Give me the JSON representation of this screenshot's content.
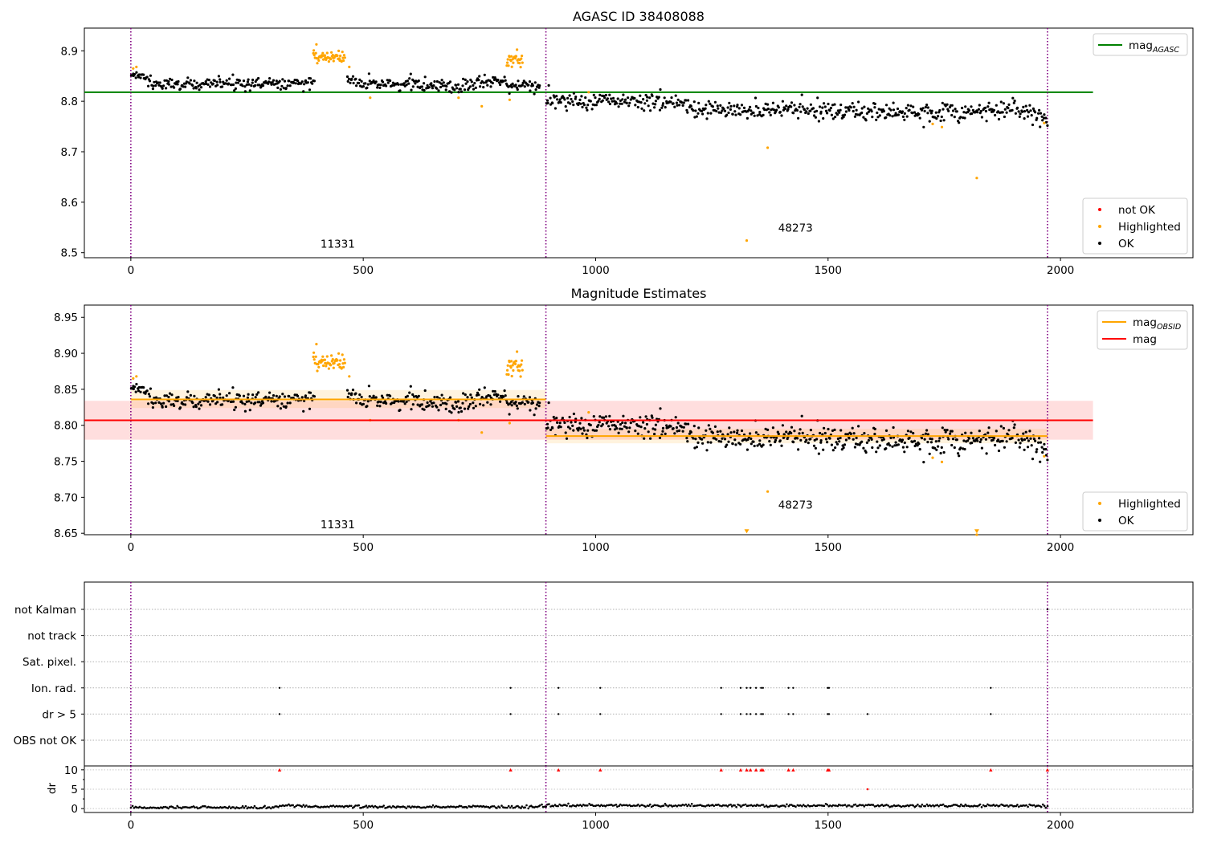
{
  "chart_data": [
    {
      "panel": "top",
      "type": "scatter",
      "title": "AGASC ID 38408088",
      "xlim": [
        -100,
        2285
      ],
      "ylim": [
        8.49,
        8.945
      ],
      "x_ticks": [
        0,
        500,
        1000,
        1500,
        2000
      ],
      "y_ticks": [
        8.5,
        8.6,
        8.7,
        8.8,
        8.9
      ],
      "obsid_boundaries": [
        0,
        893,
        1972
      ],
      "obsid_labels": [
        {
          "text": "11331",
          "x": 445,
          "y": 8.51
        },
        {
          "text": "48273",
          "x": 1430,
          "y": 8.542
        }
      ],
      "reference_lines": [
        {
          "name": "mag_AGASC",
          "value": 8.818,
          "x_range": [
            -100,
            2070
          ],
          "color": "#008000"
        }
      ],
      "series": [
        {
          "name": "OK",
          "color": "#000000",
          "segments": [
            {
              "x_range": [
                0,
                395
              ],
              "levels": [
                [
                  0,
                  8.852
                ],
                [
                  20,
                  8.85
                ],
                [
                  45,
                  8.835
                ],
                [
                  100,
                  8.835
                ],
                [
                  395,
                  8.835
                ]
              ],
              "spread": 0.006
            },
            {
              "x_range": [
                465,
                880
              ],
              "levels": [
                [
                  465,
                  8.846
                ],
                [
                  500,
                  8.832
                ],
                [
                  550,
                  8.836
                ],
                [
                  700,
                  8.83
                ],
                [
                  800,
                  8.842
                ],
                [
                  810,
                  8.832
                ],
                [
                  880,
                  8.83
                ]
              ],
              "spread": 0.006
            },
            {
              "x_range": [
                893,
                1972
              ],
              "levels": [
                [
                  893,
                  8.8
                ],
                [
                  1000,
                  8.8
                ],
                [
                  1150,
                  8.8
                ],
                [
                  1250,
                  8.78
                ],
                [
                  1400,
                  8.784
                ],
                [
                  1600,
                  8.78
                ],
                [
                  1700,
                  8.775
                ],
                [
                  1900,
                  8.785
                ],
                [
                  1972,
                  8.765
                ]
              ],
              "spread": 0.009
            }
          ]
        },
        {
          "name": "Highlighted",
          "color": "#ffa500",
          "clusters": [
            {
              "x_range": [
                392,
                460
              ],
              "center": 8.888,
              "spread": 0.007
            },
            {
              "x_range": [
                808,
                842
              ],
              "center": 8.882,
              "spread": 0.007
            }
          ],
          "points": [
            [
              5,
              8.865
            ],
            [
              12,
              8.868
            ],
            [
              470,
              8.868
            ],
            [
              515,
              8.807
            ],
            [
              705,
              8.807
            ],
            [
              755,
              8.79
            ],
            [
              815,
              8.803
            ],
            [
              985,
              8.818
            ],
            [
              1370,
              8.708
            ],
            [
              1325,
              8.524
            ],
            [
              1725,
              8.755
            ],
            [
              1745,
              8.749
            ],
            [
              1820,
              8.648
            ],
            [
              1965,
              8.757
            ]
          ]
        },
        {
          "name": "not OK",
          "color": "#ff0000",
          "points": []
        }
      ],
      "legend_lines": [
        "mag_AGASC"
      ],
      "legend_markers": [
        "not OK",
        "Highlighted",
        "OK"
      ]
    },
    {
      "panel": "middle",
      "type": "scatter",
      "title": "Magnitude Estimates",
      "xlim": [
        -100,
        2285
      ],
      "ylim": [
        8.648,
        8.967
      ],
      "x_ticks": [
        0,
        500,
        1000,
        1500,
        2000
      ],
      "y_ticks": [
        8.65,
        8.7,
        8.75,
        8.8,
        8.85,
        8.9,
        8.95
      ],
      "obsid_boundaries": [
        0,
        893,
        1972
      ],
      "obsid_labels": [
        {
          "text": "11331",
          "x": 445,
          "y": 8.657
        },
        {
          "text": "48273",
          "x": 1430,
          "y": 8.684
        }
      ],
      "bands": [
        {
          "name": "mag",
          "value": 8.807,
          "low": 8.78,
          "high": 8.834,
          "x_range": [
            -100,
            2070
          ],
          "color": "#ff0000"
        },
        {
          "name": "mag_OBSID 11331",
          "value": 8.836,
          "low": 8.824,
          "high": 8.849,
          "x_range": [
            0,
            893
          ],
          "color": "#ffa500"
        },
        {
          "name": "mag_OBSID 48273",
          "value": 8.785,
          "low": 8.775,
          "high": 8.795,
          "x_range": [
            893,
            1972
          ],
          "color": "#ffa500"
        }
      ],
      "series": [
        {
          "name": "OK",
          "color": "#000000",
          "same_as_panel": "top"
        },
        {
          "name": "Highlighted",
          "color": "#ffa500",
          "same_as_panel": "top",
          "clipped_below": [
            [
              1325,
              8.65
            ],
            [
              1820,
              8.65
            ]
          ]
        }
      ],
      "legend_lines": [
        "mag_OBSID",
        "mag"
      ],
      "legend_markers": [
        "Highlighted",
        "OK"
      ]
    },
    {
      "panel": "bottom",
      "type": "scatter",
      "xlim": [
        -100,
        2285
      ],
      "x_ticks": [
        0,
        500,
        1000,
        1500,
        2000
      ],
      "obsid_boundaries": [
        0,
        893,
        1972
      ],
      "flag_rows": [
        "not Kalman",
        "not track",
        "Sat. pixel.",
        "Ion. rad.",
        "dr > 5",
        "OBS not OK"
      ],
      "flag_points": {
        "Ion. rad.": [
          320,
          817,
          920,
          1010,
          1270,
          1312,
          1325,
          1333,
          1345,
          1356,
          1360,
          1415,
          1425,
          1499,
          1502,
          1850
        ],
        "dr > 5": [
          320,
          817,
          920,
          1010,
          1270,
          1312,
          1325,
          1333,
          1345,
          1356,
          1360,
          1415,
          1425,
          1499,
          1502,
          1585,
          1850
        ],
        "not Kalman": [
          1972
        ]
      },
      "dr": {
        "ylabel": "dr",
        "ylim": [
          -1,
          11
        ],
        "y_ticks": [
          0,
          5,
          10
        ],
        "typical": [
          [
            0,
            0.3
          ],
          [
            310,
            0.3
          ],
          [
            330,
            0.9
          ],
          [
            400,
            0.5
          ],
          [
            850,
            0.4
          ],
          [
            900,
            0.8
          ],
          [
            1972,
            0.7
          ]
        ],
        "outliers_clipped": [
          320,
          817,
          920,
          1010,
          1270,
          1312,
          1325,
          1333,
          1345,
          1356,
          1360,
          1415,
          1425,
          1499,
          1502,
          1850,
          1972
        ],
        "outliers": [
          [
            1585,
            5.0
          ]
        ]
      }
    }
  ]
}
